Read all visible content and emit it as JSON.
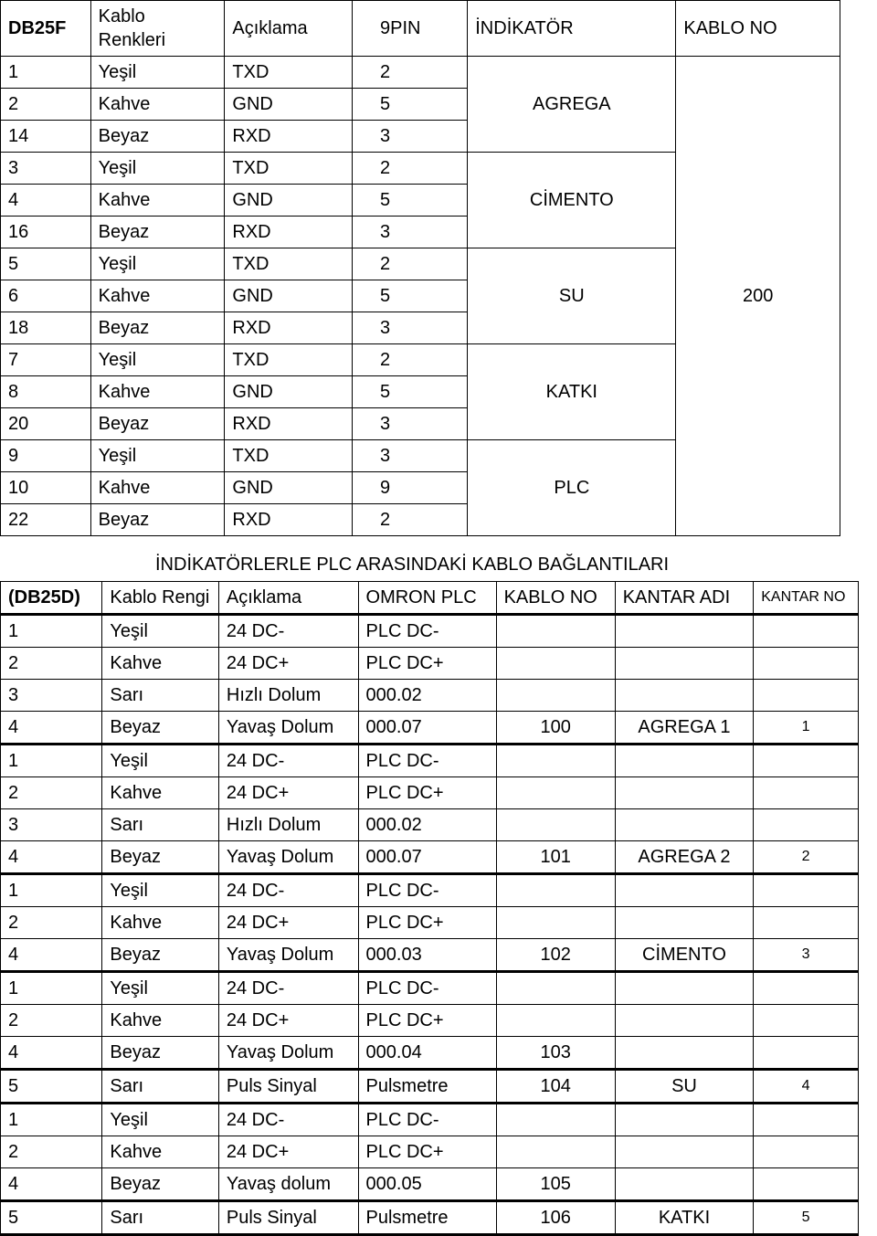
{
  "table1": {
    "headers": [
      "DB25F",
      "Kablo Renkleri",
      "Açıklama",
      "9PIN",
      "İNDİKATÖR",
      "KABLO NO"
    ],
    "groups": [
      {
        "rows": [
          [
            "1",
            "Yeşil",
            "TXD",
            "2"
          ],
          [
            "2",
            "Kahve",
            "GND",
            "5"
          ],
          [
            "14",
            "Beyaz",
            "RXD",
            "3"
          ]
        ],
        "ind": "AGREGA",
        "kno": ""
      },
      {
        "rows": [
          [
            "3",
            "Yeşil",
            "TXD",
            "2"
          ],
          [
            "4",
            "Kahve",
            "GND",
            "5"
          ],
          [
            "16",
            "Beyaz",
            "RXD",
            "3"
          ]
        ],
        "ind": "CİMENTO",
        "kno": ""
      },
      {
        "rows": [
          [
            "5",
            "Yeşil",
            "TXD",
            "2"
          ],
          [
            "6",
            "Kahve",
            "GND",
            "5"
          ],
          [
            "18",
            "Beyaz",
            "RXD",
            "3"
          ]
        ],
        "ind": "SU",
        "kno": "200"
      },
      {
        "rows": [
          [
            "7",
            "Yeşil",
            "TXD",
            "2"
          ],
          [
            "8",
            "Kahve",
            "GND",
            "5"
          ],
          [
            "20",
            "Beyaz",
            "RXD",
            "3"
          ]
        ],
        "ind": "KATKI",
        "kno": ""
      },
      {
        "rows": [
          [
            "9",
            "Yeşil",
            "TXD",
            "3"
          ],
          [
            "10",
            "Kahve",
            "GND",
            "9"
          ],
          [
            "22",
            "Beyaz",
            "RXD",
            "2"
          ]
        ],
        "ind": "PLC",
        "kno": ""
      }
    ]
  },
  "section_title": "İNDİKATÖRLERLE PLC ARASINDAKİ KABLO BAĞLANTILARI",
  "table2": {
    "headers": [
      "(DB25D)",
      "Kablo Rengi",
      "Açıklama",
      "OMRON PLC",
      "KABLO NO",
      "KANTAR ADI",
      "KANTAR NO"
    ],
    "blocks": [
      {
        "rows": [
          [
            "1",
            "Yeşil",
            "24 DC-",
            "PLC DC-",
            "",
            "",
            ""
          ],
          [
            "2",
            "Kahve",
            "24 DC+",
            "PLC DC+",
            "",
            "",
            ""
          ],
          [
            "3",
            "Sarı",
            "Hızlı Dolum",
            "000.02",
            "",
            "",
            ""
          ],
          [
            "4",
            "Beyaz",
            "Yavaş Dolum",
            "000.07",
            "100",
            "AGREGA 1",
            "1"
          ]
        ]
      },
      {
        "rows": [
          [
            "1",
            "Yeşil",
            "24 DC-",
            "PLC DC-",
            "",
            "",
            ""
          ],
          [
            "2",
            "Kahve",
            "24 DC+",
            "PLC DC+",
            "",
            "",
            ""
          ],
          [
            "3",
            "Sarı",
            "Hızlı Dolum",
            "000.02",
            "",
            "",
            ""
          ],
          [
            "4",
            "Beyaz",
            "Yavaş Dolum",
            "000.07",
            "101",
            "AGREGA 2",
            "2"
          ]
        ]
      },
      {
        "rows": [
          [
            "1",
            "Yeşil",
            "24 DC-",
            "PLC DC-",
            "",
            "",
            ""
          ],
          [
            "2",
            "Kahve",
            "24 DC+",
            "PLC DC+",
            "",
            "",
            ""
          ],
          [
            "4",
            "Beyaz",
            "Yavaş Dolum",
            "000.03",
            "102",
            "CİMENTO",
            "3"
          ]
        ]
      },
      {
        "rows": [
          [
            "1",
            "Yeşil",
            "24 DC-",
            "PLC DC-",
            "",
            "",
            ""
          ],
          [
            "2",
            "Kahve",
            "24 DC+",
            "PLC DC+",
            "",
            "",
            ""
          ],
          [
            "4",
            "Beyaz",
            "Yavaş Dolum",
            "000.04",
            "103",
            "",
            ""
          ]
        ]
      },
      {
        "rows": [
          [
            "5",
            "Sarı",
            "Puls Sinyal",
            "Pulsmetre",
            "104",
            "SU",
            "4"
          ]
        ]
      },
      {
        "rows": [
          [
            "1",
            "Yeşil",
            "24 DC-",
            "PLC DC-",
            "",
            "",
            ""
          ],
          [
            "2",
            "Kahve",
            "24 DC+",
            "PLC DC+",
            "",
            "",
            ""
          ],
          [
            "4",
            "Beyaz",
            "Yavaş dolum",
            "000.05",
            "105",
            "",
            ""
          ]
        ]
      },
      {
        "rows": [
          [
            "5",
            "Sarı",
            "Puls Sinyal",
            "Pulsmetre",
            "106",
            "KATKI",
            "5"
          ]
        ]
      }
    ]
  }
}
